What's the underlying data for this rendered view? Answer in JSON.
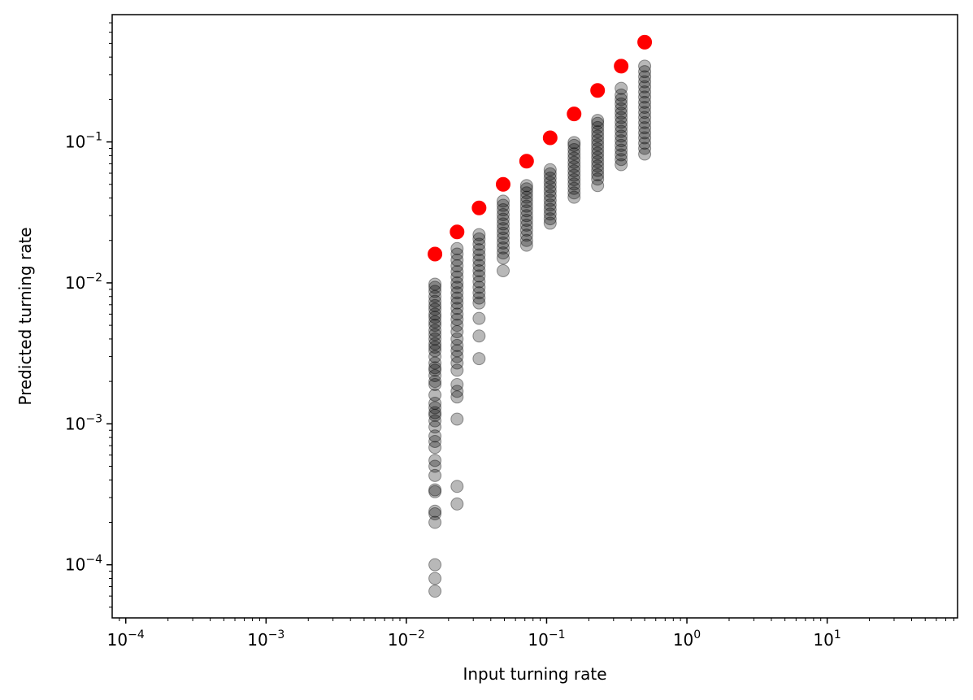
{
  "chart_data": {
    "type": "scatter",
    "xlabel": "Input turning rate",
    "ylabel": "Predicted turning rate",
    "xscale": "log",
    "yscale": "log",
    "xlim": [
      8e-05,
      85
    ],
    "ylim": [
      4.2e-05,
      0.8
    ],
    "grid": false,
    "legend": "none",
    "x_ticks": [
      {
        "value": 0.0001,
        "base": "10",
        "exp": "−4"
      },
      {
        "value": 0.001,
        "base": "10",
        "exp": "−3"
      },
      {
        "value": 0.01,
        "base": "10",
        "exp": "−2"
      },
      {
        "value": 0.1,
        "base": "10",
        "exp": "−1"
      },
      {
        "value": 1,
        "base": "10",
        "exp": "0"
      },
      {
        "value": 10,
        "base": "10",
        "exp": "1"
      }
    ],
    "y_ticks": [
      {
        "value": 0.0001,
        "base": "10",
        "exp": "−4"
      },
      {
        "value": 0.001,
        "base": "10",
        "exp": "−3"
      },
      {
        "value": 0.01,
        "base": "10",
        "exp": "−2"
      },
      {
        "value": 0.1,
        "base": "10",
        "exp": "−1"
      }
    ],
    "series": [
      {
        "color": "#000000",
        "opacity": 0.28,
        "points": [
          [
            0.016,
            6.5e-05
          ],
          [
            0.016,
            8e-05
          ],
          [
            0.016,
            0.0001
          ],
          [
            0.016,
            0.0002
          ],
          [
            0.016,
            0.00023
          ],
          [
            0.016,
            0.00024
          ],
          [
            0.016,
            0.00033
          ],
          [
            0.016,
            0.00034
          ],
          [
            0.016,
            0.00043
          ],
          [
            0.016,
            0.0005
          ],
          [
            0.016,
            0.00055
          ],
          [
            0.016,
            0.00068
          ],
          [
            0.016,
            0.00075
          ],
          [
            0.016,
            0.00082
          ],
          [
            0.016,
            0.00095
          ],
          [
            0.016,
            0.00105
          ],
          [
            0.016,
            0.00115
          ],
          [
            0.016,
            0.0012
          ],
          [
            0.016,
            0.0013
          ],
          [
            0.016,
            0.0014
          ],
          [
            0.016,
            0.0016
          ],
          [
            0.016,
            0.0019
          ],
          [
            0.016,
            0.002
          ],
          [
            0.016,
            0.0022
          ],
          [
            0.016,
            0.0024
          ],
          [
            0.016,
            0.0025
          ],
          [
            0.016,
            0.0027
          ],
          [
            0.016,
            0.003
          ],
          [
            0.016,
            0.0033
          ],
          [
            0.016,
            0.0035
          ],
          [
            0.016,
            0.0037
          ],
          [
            0.016,
            0.004
          ],
          [
            0.016,
            0.0043
          ],
          [
            0.016,
            0.0046
          ],
          [
            0.016,
            0.005
          ],
          [
            0.016,
            0.0053
          ],
          [
            0.016,
            0.0057
          ],
          [
            0.016,
            0.006
          ],
          [
            0.016,
            0.0065
          ],
          [
            0.016,
            0.0069
          ],
          [
            0.016,
            0.0074
          ],
          [
            0.016,
            0.008
          ],
          [
            0.016,
            0.0087
          ],
          [
            0.016,
            0.0093
          ],
          [
            0.016,
            0.0098
          ],
          [
            0.023,
            0.00027
          ],
          [
            0.023,
            0.00036
          ],
          [
            0.023,
            0.00108
          ],
          [
            0.023,
            0.00155
          ],
          [
            0.023,
            0.0017
          ],
          [
            0.023,
            0.0019
          ],
          [
            0.023,
            0.0024
          ],
          [
            0.023,
            0.0027
          ],
          [
            0.023,
            0.003
          ],
          [
            0.023,
            0.0033
          ],
          [
            0.023,
            0.0036
          ],
          [
            0.023,
            0.004
          ],
          [
            0.023,
            0.0045
          ],
          [
            0.023,
            0.005
          ],
          [
            0.023,
            0.0055
          ],
          [
            0.023,
            0.006
          ],
          [
            0.023,
            0.0066
          ],
          [
            0.023,
            0.0072
          ],
          [
            0.023,
            0.0078
          ],
          [
            0.023,
            0.0085
          ],
          [
            0.023,
            0.0093
          ],
          [
            0.023,
            0.01
          ],
          [
            0.023,
            0.011
          ],
          [
            0.023,
            0.012
          ],
          [
            0.023,
            0.0132
          ],
          [
            0.023,
            0.0145
          ],
          [
            0.023,
            0.016
          ],
          [
            0.023,
            0.0175
          ],
          [
            0.033,
            0.0029
          ],
          [
            0.033,
            0.0042
          ],
          [
            0.033,
            0.0056
          ],
          [
            0.033,
            0.0072
          ],
          [
            0.033,
            0.0078
          ],
          [
            0.033,
            0.0085
          ],
          [
            0.033,
            0.0093
          ],
          [
            0.033,
            0.0102
          ],
          [
            0.033,
            0.0112
          ],
          [
            0.033,
            0.0122
          ],
          [
            0.033,
            0.0133
          ],
          [
            0.033,
            0.0145
          ],
          [
            0.033,
            0.0158
          ],
          [
            0.033,
            0.0172
          ],
          [
            0.033,
            0.0188
          ],
          [
            0.033,
            0.0205
          ],
          [
            0.033,
            0.022
          ],
          [
            0.049,
            0.0122
          ],
          [
            0.049,
            0.015
          ],
          [
            0.049,
            0.0163
          ],
          [
            0.049,
            0.0177
          ],
          [
            0.049,
            0.0192
          ],
          [
            0.049,
            0.0208
          ],
          [
            0.049,
            0.0225
          ],
          [
            0.049,
            0.0243
          ],
          [
            0.049,
            0.0262
          ],
          [
            0.049,
            0.0283
          ],
          [
            0.049,
            0.0305
          ],
          [
            0.049,
            0.033
          ],
          [
            0.049,
            0.0355
          ],
          [
            0.049,
            0.038
          ],
          [
            0.072,
            0.0185
          ],
          [
            0.072,
            0.02
          ],
          [
            0.072,
            0.0218
          ],
          [
            0.072,
            0.0237
          ],
          [
            0.072,
            0.0257
          ],
          [
            0.072,
            0.0278
          ],
          [
            0.072,
            0.03
          ],
          [
            0.072,
            0.0325
          ],
          [
            0.072,
            0.035
          ],
          [
            0.072,
            0.0377
          ],
          [
            0.072,
            0.0405
          ],
          [
            0.072,
            0.0435
          ],
          [
            0.072,
            0.0465
          ],
          [
            0.072,
            0.049
          ],
          [
            0.106,
            0.0265
          ],
          [
            0.106,
            0.0285
          ],
          [
            0.106,
            0.0308
          ],
          [
            0.106,
            0.0332
          ],
          [
            0.106,
            0.0357
          ],
          [
            0.106,
            0.0385
          ],
          [
            0.106,
            0.0415
          ],
          [
            0.106,
            0.0447
          ],
          [
            0.106,
            0.048
          ],
          [
            0.106,
            0.0515
          ],
          [
            0.106,
            0.0553
          ],
          [
            0.106,
            0.0593
          ],
          [
            0.106,
            0.0635
          ],
          [
            0.157,
            0.0405
          ],
          [
            0.157,
            0.0435
          ],
          [
            0.157,
            0.0468
          ],
          [
            0.157,
            0.0503
          ],
          [
            0.157,
            0.054
          ],
          [
            0.157,
            0.058
          ],
          [
            0.157,
            0.0623
          ],
          [
            0.157,
            0.0668
          ],
          [
            0.157,
            0.0716
          ],
          [
            0.157,
            0.0768
          ],
          [
            0.157,
            0.0823
          ],
          [
            0.157,
            0.0882
          ],
          [
            0.157,
            0.0945
          ],
          [
            0.157,
            0.099
          ],
          [
            0.231,
            0.049
          ],
          [
            0.231,
            0.0545
          ],
          [
            0.231,
            0.0585
          ],
          [
            0.231,
            0.0628
          ],
          [
            0.231,
            0.0674
          ],
          [
            0.231,
            0.0723
          ],
          [
            0.231,
            0.0776
          ],
          [
            0.231,
            0.0832
          ],
          [
            0.231,
            0.0892
          ],
          [
            0.231,
            0.0956
          ],
          [
            0.231,
            0.1025
          ],
          [
            0.231,
            0.11
          ],
          [
            0.231,
            0.118
          ],
          [
            0.231,
            0.1265
          ],
          [
            0.231,
            0.1355
          ],
          [
            0.231,
            0.142
          ],
          [
            0.34,
            0.069
          ],
          [
            0.34,
            0.075
          ],
          [
            0.34,
            0.081
          ],
          [
            0.34,
            0.0875
          ],
          [
            0.34,
            0.0945
          ],
          [
            0.34,
            0.102
          ],
          [
            0.34,
            0.11
          ],
          [
            0.34,
            0.1188
          ],
          [
            0.34,
            0.128
          ],
          [
            0.34,
            0.138
          ],
          [
            0.34,
            0.149
          ],
          [
            0.34,
            0.16
          ],
          [
            0.34,
            0.172
          ],
          [
            0.34,
            0.186
          ],
          [
            0.34,
            0.2
          ],
          [
            0.34,
            0.215
          ],
          [
            0.34,
            0.24
          ],
          [
            0.5,
            0.082
          ],
          [
            0.5,
            0.09
          ],
          [
            0.5,
            0.098
          ],
          [
            0.5,
            0.107
          ],
          [
            0.5,
            0.116
          ],
          [
            0.5,
            0.126
          ],
          [
            0.5,
            0.137
          ],
          [
            0.5,
            0.149
          ],
          [
            0.5,
            0.162
          ],
          [
            0.5,
            0.176
          ],
          [
            0.5,
            0.191
          ],
          [
            0.5,
            0.208
          ],
          [
            0.5,
            0.226
          ],
          [
            0.5,
            0.246
          ],
          [
            0.5,
            0.267
          ],
          [
            0.5,
            0.29
          ],
          [
            0.5,
            0.315
          ],
          [
            0.5,
            0.345
          ]
        ]
      },
      {
        "color": "#ff0000",
        "opacity": 1,
        "points": [
          [
            0.016,
            0.016
          ],
          [
            0.023,
            0.023
          ],
          [
            0.033,
            0.034
          ],
          [
            0.049,
            0.05
          ],
          [
            0.072,
            0.073
          ],
          [
            0.106,
            0.107
          ],
          [
            0.157,
            0.158
          ],
          [
            0.231,
            0.232
          ],
          [
            0.34,
            0.345
          ],
          [
            0.5,
            0.51
          ]
        ]
      }
    ]
  }
}
